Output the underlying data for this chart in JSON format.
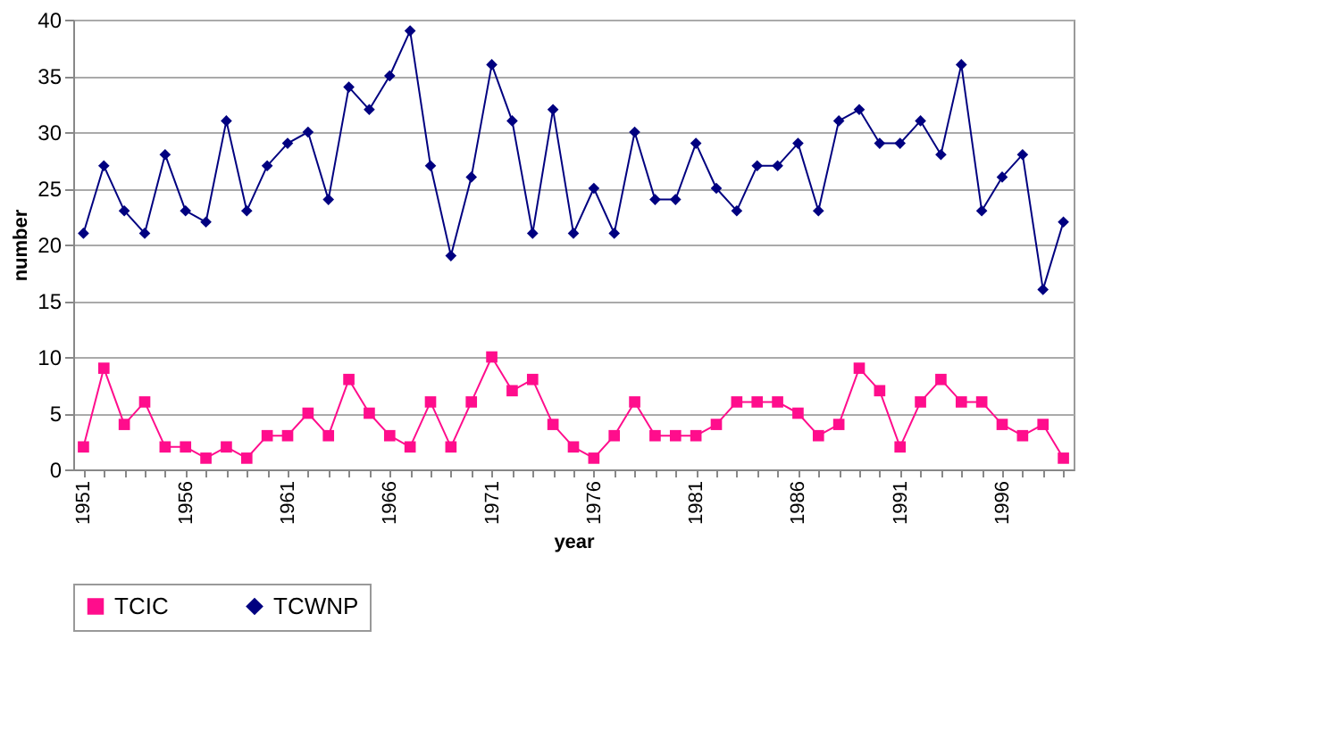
{
  "chart_data": {
    "type": "line",
    "xlabel": "year",
    "ylabel": "number",
    "categories": [
      "1951",
      null,
      null,
      null,
      null,
      "1956",
      null,
      null,
      null,
      null,
      "1961",
      null,
      null,
      null,
      null,
      "1966",
      null,
      null,
      null,
      null,
      "1971",
      null,
      null,
      null,
      null,
      "1976",
      null,
      null,
      null,
      null,
      "1981",
      null,
      null,
      null,
      null,
      "1986",
      null,
      null,
      null,
      null,
      "1991",
      null,
      null,
      null,
      null,
      "1996",
      null,
      null,
      null
    ],
    "series": [
      {
        "name": "TCIC",
        "color": "#ff0d8c",
        "marker": "square",
        "values": [
          2,
          9,
          4,
          6,
          2,
          2,
          1,
          2,
          1,
          3,
          3,
          5,
          3,
          8,
          5,
          3,
          2,
          6,
          2,
          6,
          10,
          7,
          8,
          4,
          2,
          1,
          3,
          6,
          3,
          3,
          3,
          4,
          6,
          6,
          6,
          5,
          3,
          4,
          9,
          7,
          2,
          6,
          8,
          6,
          6,
          4,
          3,
          4,
          1
        ]
      },
      {
        "name": "TCWNP",
        "color": "#000080",
        "marker": "diamond",
        "values": [
          21,
          27,
          23,
          21,
          28,
          23,
          22,
          31,
          23,
          27,
          29,
          30,
          24,
          34,
          32,
          35,
          39,
          27,
          19,
          26,
          36,
          31,
          21,
          32,
          21,
          25,
          21,
          30,
          24,
          24,
          29,
          25,
          23,
          27,
          27,
          29,
          23,
          31,
          32,
          29,
          29,
          31,
          28,
          36,
          23,
          26,
          28,
          16,
          22
        ]
      }
    ],
    "ylim": [
      0,
      40
    ],
    "yticks": [
      0,
      5,
      10,
      15,
      20,
      25,
      30,
      35,
      40
    ],
    "grid": "y",
    "legend": "bottom",
    "line_style": "solid"
  }
}
